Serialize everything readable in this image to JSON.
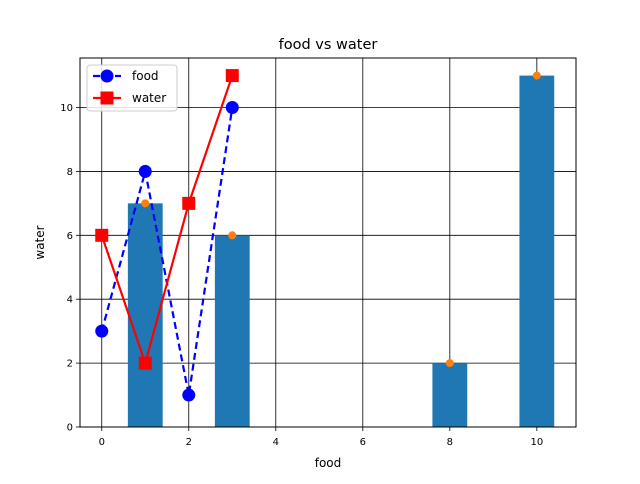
{
  "chart_data": {
    "type": "bar+line",
    "title": "food vs water",
    "xlabel": "food",
    "ylabel": "water",
    "xlim": [
      -0.5,
      10.9
    ],
    "ylim": [
      0,
      11.55
    ],
    "xticks": [
      0,
      2,
      4,
      6,
      8,
      10
    ],
    "yticks": [
      0,
      2,
      4,
      6,
      8,
      10
    ],
    "grid": true,
    "legend_position": "top-left",
    "bars": {
      "x": [
        1,
        3,
        8,
        10
      ],
      "values": [
        7,
        6,
        2,
        11
      ],
      "width": 0.8,
      "color": "#1f77b4"
    },
    "scatter": {
      "x": [
        1,
        3,
        8,
        10
      ],
      "values": [
        7,
        6,
        2,
        11
      ],
      "color": "#ff7f0e"
    },
    "series": [
      {
        "name": "food",
        "x": [
          0,
          1,
          2,
          3
        ],
        "values": [
          3,
          8,
          1,
          10
        ],
        "color": "#0000ff",
        "style": "dashed",
        "marker": "circle"
      },
      {
        "name": "water",
        "x": [
          0,
          1,
          2,
          3
        ],
        "values": [
          6,
          2,
          7,
          11
        ],
        "color": "#ff0000",
        "style": "solid",
        "marker": "square"
      }
    ]
  }
}
